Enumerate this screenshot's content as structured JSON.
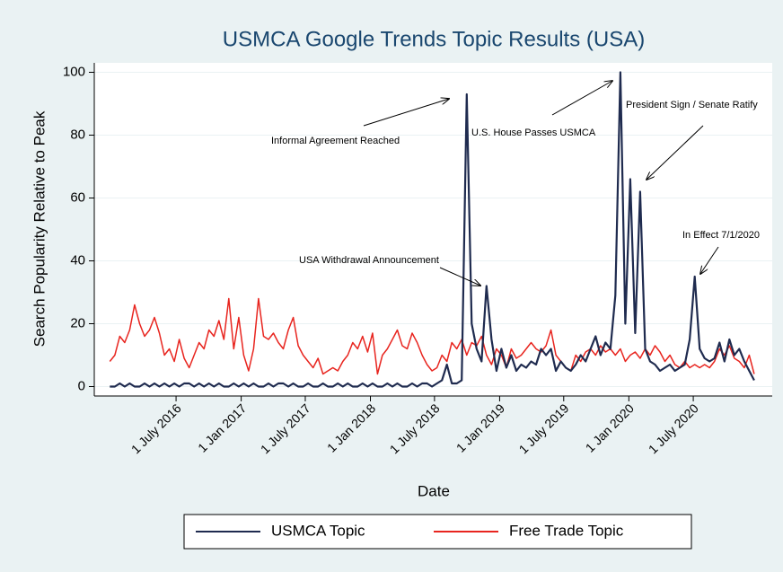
{
  "chart_data": {
    "type": "line",
    "title": "USMCA Google Trends Topic Results (USA)",
    "xlabel": "Date",
    "ylabel": "Search Popularity Relative to Peak",
    "x": [
      "2015-12-27",
      "2016-01-10",
      "2016-01-24",
      "2016-02-07",
      "2016-02-21",
      "2016-03-06",
      "2016-03-20",
      "2016-04-03",
      "2016-04-17",
      "2016-05-01",
      "2016-05-15",
      "2016-05-29",
      "2016-06-12",
      "2016-06-26",
      "2016-07-10",
      "2016-07-24",
      "2016-08-07",
      "2016-08-21",
      "2016-09-04",
      "2016-09-18",
      "2016-10-02",
      "2016-10-16",
      "2016-10-30",
      "2016-11-13",
      "2016-11-27",
      "2016-12-11",
      "2016-12-25",
      "2017-01-08",
      "2017-01-22",
      "2017-02-05",
      "2017-02-19",
      "2017-03-05",
      "2017-03-19",
      "2017-04-02",
      "2017-04-16",
      "2017-04-30",
      "2017-05-14",
      "2017-05-28",
      "2017-06-11",
      "2017-06-25",
      "2017-07-09",
      "2017-07-23",
      "2017-08-06",
      "2017-08-20",
      "2017-09-03",
      "2017-09-17",
      "2017-10-01",
      "2017-10-15",
      "2017-10-29",
      "2017-11-12",
      "2017-11-26",
      "2017-12-10",
      "2017-12-24",
      "2018-01-07",
      "2018-01-21",
      "2018-02-04",
      "2018-02-18",
      "2018-03-04",
      "2018-03-18",
      "2018-04-01",
      "2018-04-15",
      "2018-04-29",
      "2018-05-13",
      "2018-05-27",
      "2018-06-10",
      "2018-06-24",
      "2018-07-08",
      "2018-07-22",
      "2018-08-05",
      "2018-08-19",
      "2018-09-02",
      "2018-09-16",
      "2018-09-30",
      "2018-10-14",
      "2018-10-28",
      "2018-11-11",
      "2018-11-25",
      "2018-12-09",
      "2018-12-23",
      "2019-01-06",
      "2019-01-20",
      "2019-02-03",
      "2019-02-17",
      "2019-03-03",
      "2019-03-17",
      "2019-03-31",
      "2019-04-14",
      "2019-04-28",
      "2019-05-12",
      "2019-05-26",
      "2019-06-09",
      "2019-06-23",
      "2019-07-07",
      "2019-07-21",
      "2019-08-04",
      "2019-08-18",
      "2019-09-01",
      "2019-09-15",
      "2019-09-29",
      "2019-10-13",
      "2019-10-27",
      "2019-11-10",
      "2019-11-24",
      "2019-12-08",
      "2019-12-22",
      "2020-01-05",
      "2020-01-19",
      "2020-02-02",
      "2020-02-16",
      "2020-03-01",
      "2020-03-15",
      "2020-03-29",
      "2020-04-12",
      "2020-04-26",
      "2020-05-10",
      "2020-05-24",
      "2020-06-07",
      "2020-06-21",
      "2020-07-05",
      "2020-07-19",
      "2020-08-02",
      "2020-08-16",
      "2020-08-30",
      "2020-09-13",
      "2020-09-27",
      "2020-10-11",
      "2020-10-25",
      "2020-11-08",
      "2020-11-22",
      "2020-12-06",
      "2020-12-20"
    ],
    "series": [
      {
        "name": "USMCA Topic",
        "color": "#1f2b4f",
        "values": [
          0,
          0,
          1,
          0,
          1,
          0,
          0,
          1,
          0,
          1,
          0,
          1,
          0,
          1,
          0,
          1,
          1,
          0,
          1,
          0,
          1,
          0,
          1,
          0,
          0,
          1,
          0,
          1,
          0,
          1,
          0,
          0,
          1,
          0,
          1,
          1,
          0,
          1,
          0,
          0,
          1,
          0,
          0,
          1,
          0,
          0,
          1,
          0,
          1,
          0,
          0,
          1,
          0,
          1,
          0,
          0,
          1,
          0,
          1,
          0,
          0,
          1,
          0,
          1,
          1,
          0,
          1,
          2,
          7,
          1,
          1,
          2,
          93,
          20,
          12,
          8,
          32,
          15,
          5,
          12,
          6,
          10,
          5,
          7,
          6,
          8,
          7,
          12,
          10,
          12,
          5,
          8,
          6,
          5,
          7,
          10,
          8,
          12,
          16,
          10,
          14,
          12,
          29,
          100,
          20,
          66,
          17,
          62,
          12,
          8,
          7,
          5,
          6,
          7,
          5,
          6,
          7,
          15,
          35,
          12,
          9,
          8,
          9,
          14,
          8,
          15,
          10,
          12,
          8,
          5,
          2
        ]
      },
      {
        "name": "Free Trade Topic",
        "color": "#e8251f",
        "values": [
          8,
          10,
          16,
          14,
          18,
          26,
          20,
          16,
          18,
          22,
          17,
          10,
          12,
          8,
          15,
          9,
          6,
          10,
          14,
          12,
          18,
          16,
          21,
          15,
          28,
          12,
          22,
          10,
          5,
          12,
          28,
          16,
          15,
          17,
          14,
          12,
          18,
          22,
          13,
          10,
          8,
          6,
          9,
          4,
          5,
          6,
          5,
          8,
          10,
          14,
          12,
          16,
          11,
          17,
          4,
          10,
          12,
          15,
          18,
          13,
          12,
          17,
          14,
          10,
          7,
          5,
          6,
          10,
          8,
          14,
          12,
          15,
          10,
          14,
          13,
          16,
          10,
          7,
          12,
          10,
          6,
          12,
          9,
          10,
          12,
          14,
          12,
          11,
          13,
          18,
          10,
          8,
          6,
          5,
          10,
          8,
          11,
          12,
          10,
          13,
          11,
          12,
          10,
          12,
          8,
          10,
          11,
          9,
          12,
          10,
          13,
          11,
          8,
          10,
          7,
          6,
          8,
          6,
          7,
          6,
          7,
          6,
          8,
          12,
          10,
          13,
          9,
          8,
          6,
          10,
          4
        ]
      }
    ],
    "xlim": [
      "2015-11-13",
      "2021-02-09"
    ],
    "xticks": [
      {
        "value": "2016-07-01",
        "label": "1 July 2016"
      },
      {
        "value": "2017-01-01",
        "label": "1 Jan 2017"
      },
      {
        "value": "2017-07-01",
        "label": "1 July 2017"
      },
      {
        "value": "2018-01-01",
        "label": "1 Jan 2018"
      },
      {
        "value": "2018-07-01",
        "label": "1 July 2018"
      },
      {
        "value": "2019-01-01",
        "label": "1 Jan 2019"
      },
      {
        "value": "2019-07-01",
        "label": "1 July 2019"
      },
      {
        "value": "2020-01-01",
        "label": "1 Jan 2020"
      },
      {
        "value": "2020-07-01",
        "label": "1 July 2020"
      }
    ],
    "ylim": [
      -3,
      103
    ],
    "yticks": [
      0,
      20,
      40,
      60,
      80,
      100
    ],
    "grid": true,
    "legend": "bottom",
    "annotations": [
      "Informal Agreement Reached",
      "U.S. House Passes USMCA",
      "President Sign / Senate Ratify",
      "USA Withdrawal Announcement",
      "In Effect 7/1/2020"
    ]
  }
}
